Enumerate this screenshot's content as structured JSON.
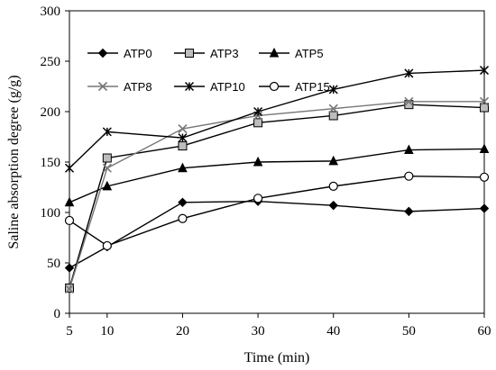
{
  "chart_data": {
    "type": "line",
    "title": "",
    "xlabel": "Time (min)",
    "ylabel": "Saline absorption degree (g/g)",
    "x": [
      5,
      10,
      20,
      30,
      40,
      50,
      60
    ],
    "x_ticks": [
      5,
      10,
      20,
      30,
      40,
      50,
      60
    ],
    "y_ticks": [
      0,
      50,
      100,
      150,
      200,
      250,
      300
    ],
    "ylim": [
      0,
      300
    ],
    "grid": false,
    "legend_placement": "top-left inside plot",
    "series": [
      {
        "name": "ATP0",
        "marker": "diamond",
        "color": "#000000",
        "values": [
          45,
          66,
          110,
          111,
          107,
          101,
          104
        ]
      },
      {
        "name": "ATP3",
        "marker": "square",
        "color": "#000000",
        "values": [
          25,
          154,
          166,
          189,
          196,
          207,
          204
        ]
      },
      {
        "name": "ATP5",
        "marker": "triangle",
        "color": "#000000",
        "values": [
          110,
          126,
          144,
          150,
          151,
          162,
          163
        ]
      },
      {
        "name": "ATP8",
        "marker": "x",
        "color": "#777777",
        "values": [
          24,
          144,
          183,
          196,
          203,
          210,
          210
        ]
      },
      {
        "name": "ATP10",
        "marker": "asterisk",
        "color": "#000000",
        "values": [
          144,
          180,
          174,
          200,
          222,
          238,
          241
        ]
      },
      {
        "name": "ATP15",
        "marker": "circle",
        "color": "#000000",
        "values": [
          92,
          67,
          94,
          114,
          126,
          136,
          135
        ]
      }
    ]
  }
}
